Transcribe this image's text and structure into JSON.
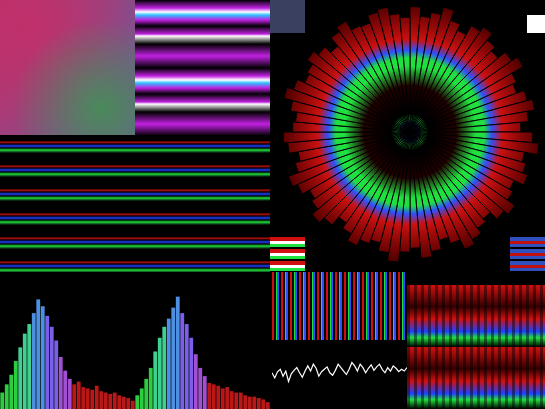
{
  "panels": [
    {
      "type": "blend",
      "colors": [
        "#c0306a",
        "#4a8a5a",
        "#6a5a9a"
      ]
    },
    {
      "type": "blobs",
      "colors": [
        "#c020e0",
        "#ffffff",
        "#30c0ff",
        "#000000"
      ]
    },
    {
      "type": "block",
      "colors": [
        "#3a4060"
      ]
    },
    {
      "type": "streaks",
      "colors": [
        "#d01010",
        "#2040ff",
        "#20e040"
      ]
    },
    {
      "type": "stripes_h",
      "colors": [
        "#d01010",
        "#ffffff",
        "#20e040"
      ]
    },
    {
      "type": "stripes_h",
      "colors": [
        "#3050c0",
        "#c01010",
        "#3050c0"
      ]
    },
    {
      "type": "stripes_v",
      "colors": [
        "#d01010",
        "#20e040",
        "#3050ff"
      ]
    },
    {
      "type": "spectrogram",
      "colors": [
        "#d01010",
        "#2040ff",
        "#20e040"
      ]
    },
    {
      "type": "block",
      "colors": [
        "#ffffff"
      ]
    }
  ],
  "chart_data": [
    {
      "type": "polarArea",
      "color": "#cc1111",
      "ylim": [
        0,
        100
      ],
      "tick_labels": false,
      "grid": false,
      "values": [
        95,
        88,
        92,
        98,
        90,
        85,
        93,
        97,
        91,
        87,
        94,
        99,
        89,
        86,
        92,
        96,
        90,
        84,
        93,
        98,
        88,
        91,
        95,
        87,
        90,
        97,
        93,
        86,
        89,
        94,
        98,
        90,
        85,
        92,
        96,
        88,
        91,
        99,
        93,
        87,
        90,
        95,
        89,
        84,
        92,
        97,
        91,
        88,
        94,
        98,
        90,
        86,
        93,
        96,
        89,
        87,
        92,
        99,
        94,
        88,
        90,
        95,
        91,
        85,
        93,
        97,
        89,
        88,
        94,
        96,
        90,
        87
      ]
    },
    {
      "type": "bar",
      "ylim": [
        0,
        100
      ],
      "tick_labels": false,
      "grid": false,
      "values": [
        12,
        18,
        25,
        35,
        45,
        55,
        62,
        70,
        80,
        75,
        68,
        60,
        50,
        38,
        28,
        22,
        18,
        20,
        16,
        15,
        14,
        17,
        13,
        12,
        11,
        12,
        10,
        9,
        8,
        6
      ],
      "colors": [
        "#2ecc40",
        "#2ecc40",
        "#2ecc40",
        "#2ecc40",
        "#3fcf8f",
        "#3fcf8f",
        "#3fcf8f",
        "#4d8fe0",
        "#4d8fe0",
        "#4d8fe0",
        "#7a60e8",
        "#7a60e8",
        "#7a60e8",
        "#a050d0",
        "#a050d0",
        "#a050d0",
        "#b81818",
        "#b81818",
        "#b81818",
        "#b81818",
        "#b81818",
        "#b81818",
        "#b81818",
        "#b81818",
        "#b81818",
        "#b81818",
        "#b81818",
        "#b81818",
        "#b81818",
        "#b81818"
      ]
    },
    {
      "type": "bar",
      "ylim": [
        0,
        100
      ],
      "tick_labels": false,
      "grid": false,
      "values": [
        10,
        15,
        22,
        30,
        42,
        52,
        60,
        66,
        74,
        82,
        70,
        62,
        52,
        40,
        30,
        24,
        19,
        18,
        17,
        15,
        16,
        13,
        12,
        12,
        10,
        9,
        9,
        8,
        7,
        5
      ],
      "colors": [
        "#2ecc40",
        "#2ecc40",
        "#2ecc40",
        "#2ecc40",
        "#3fcf8f",
        "#3fcf8f",
        "#3fcf8f",
        "#4d8fe0",
        "#4d8fe0",
        "#4d8fe0",
        "#7a60e8",
        "#7a60e8",
        "#7a60e8",
        "#a050d0",
        "#a050d0",
        "#a050d0",
        "#b81818",
        "#b81818",
        "#b81818",
        "#b81818",
        "#b81818",
        "#b81818",
        "#b81818",
        "#b81818",
        "#b81818",
        "#b81818",
        "#b81818",
        "#b81818",
        "#b81818",
        "#b81818"
      ]
    },
    {
      "type": "line",
      "color": "#ffffff",
      "xlim": [
        0,
        49
      ],
      "ylim": [
        -1,
        1
      ],
      "tick_labels": false,
      "grid": false,
      "x": [
        0,
        1,
        2,
        3,
        4,
        5,
        6,
        7,
        8,
        9,
        10,
        11,
        12,
        13,
        14,
        15,
        16,
        17,
        18,
        19,
        20,
        21,
        22,
        23,
        24,
        25,
        26,
        27,
        28,
        29,
        30,
        31,
        32,
        33,
        34,
        35,
        36,
        37,
        38,
        39,
        40,
        41,
        42,
        43,
        44,
        45,
        46,
        47,
        48,
        49
      ],
      "values": [
        0.05,
        -0.1,
        0.08,
        0.15,
        -0.05,
        0.1,
        -0.2,
        0.02,
        0.12,
        0.2,
        0.05,
        -0.08,
        0.1,
        0.25,
        0.1,
        0.3,
        0.18,
        -0.05,
        0.08,
        0.15,
        0.22,
        0.05,
        -0.02,
        0.12,
        0.3,
        0.2,
        0.1,
        0.0,
        0.15,
        0.35,
        0.25,
        0.1,
        0.3,
        0.2,
        0.05,
        0.18,
        0.28,
        0.12,
        0.22,
        0.3,
        0.15,
        0.05,
        0.2,
        0.1,
        0.25,
        0.18,
        0.08,
        0.15,
        0.1,
        0.2
      ]
    }
  ]
}
